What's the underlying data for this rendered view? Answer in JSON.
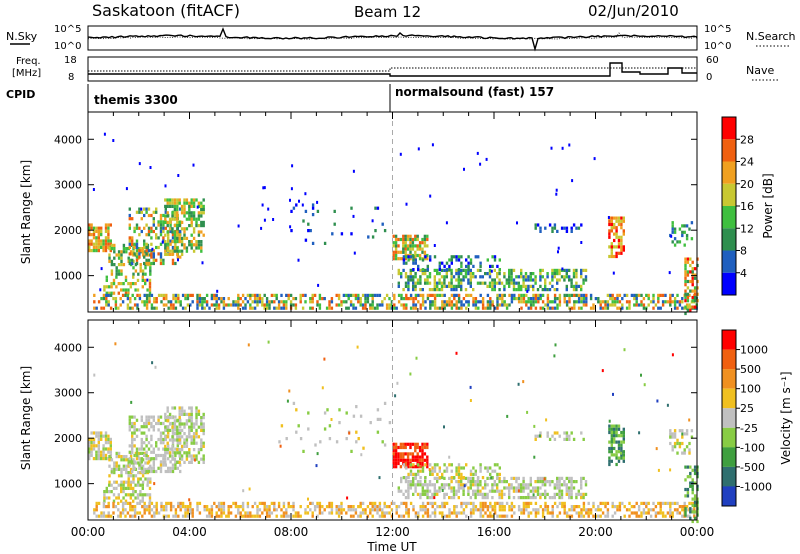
{
  "header": {
    "station": "Saskatoon (fitACF)",
    "beam": "Beam 12",
    "date": "02/Jun/2010"
  },
  "strips": {
    "nsky_label": "N.Sky",
    "nsky_ticks": [
      "10^5",
      "10^0"
    ],
    "nsearch_label": "N.Search",
    "nsearch_ticks": [
      "10^5",
      "10^0"
    ],
    "freq_label_1": "Freq.",
    "freq_label_2": "[MHz]",
    "freq_ticks": [
      "18",
      "8"
    ],
    "nave_label": "Nave",
    "nave_ticks": [
      "60",
      "0"
    ],
    "cpid_label": "CPID",
    "cpid_segments": [
      "themis 3300",
      "normalsound (fast) 157"
    ]
  },
  "chart_data": [
    {
      "type": "heatmap",
      "name": "power",
      "ylabel": "Slant Range [km]",
      "yticks": [
        "1000",
        "2000",
        "3000",
        "4000"
      ],
      "ylim": [
        200,
        4600
      ],
      "xlim_hours": [
        0,
        24
      ],
      "colorbar_label": "Power [dB]",
      "colorbar_ticks": [
        "4",
        "8",
        "12",
        "16",
        "20",
        "24",
        "28"
      ],
      "colorbar_colors": [
        "#0000ff",
        "#1f5fbf",
        "#2f8f4f",
        "#3fbf3f",
        "#c8c832",
        "#f0a020",
        "#f06010",
        "#ff0000"
      ]
    },
    {
      "type": "heatmap",
      "name": "velocity",
      "ylabel": "Slant Range [km]",
      "yticks": [
        "1000",
        "2000",
        "3000",
        "4000"
      ],
      "ylim": [
        200,
        4600
      ],
      "xlim_hours": [
        0,
        24
      ],
      "xticks": [
        "00:00",
        "04:00",
        "08:00",
        "12:00",
        "16:00",
        "20:00",
        "00:00"
      ],
      "xlabel": "Time UT",
      "colorbar_label": "Velocity [m s⁻¹]",
      "colorbar_ticks": [
        "1000",
        "500",
        "100",
        "25",
        "-25",
        "-100",
        "-500",
        "-1000"
      ],
      "colorbar_colors": [
        "#2040c0",
        "#2f6f6f",
        "#3f9f3f",
        "#88cc44",
        "#c0c0c0",
        "#f0c020",
        "#f09020",
        "#f06010",
        "#ff0000"
      ]
    }
  ]
}
